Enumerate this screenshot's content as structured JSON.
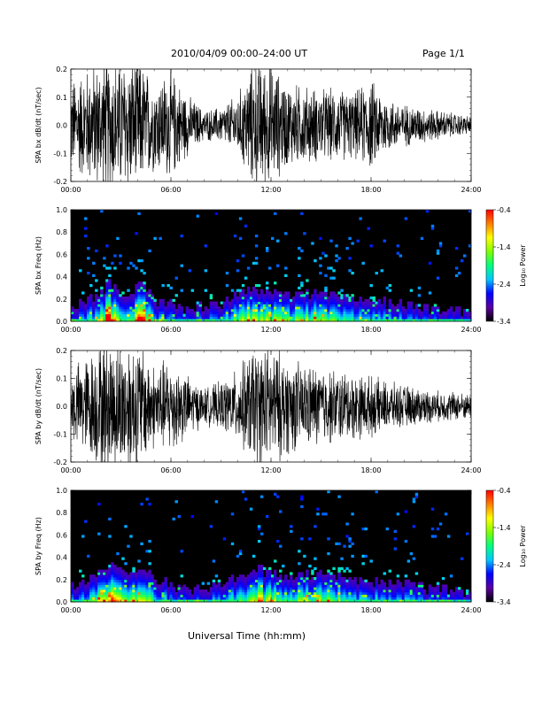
{
  "header": {
    "title": "2010/04/09   00:00–24:00 UT",
    "page": "Page 1/1"
  },
  "footer": {
    "xlabel": "Universal Time (hh:mm)"
  },
  "colorbar": {
    "label": "Log₁₀ Power",
    "ticks": [
      "-0.4",
      "-1.4",
      "-2.4",
      "-3.4"
    ],
    "range": [
      -3.4,
      -0.4
    ],
    "colors": [
      "#000000",
      "#5a00a0",
      "#0000ff",
      "#00c8ff",
      "#00ff80",
      "#80ff00",
      "#ffff00",
      "#ff8000",
      "#ff0000"
    ]
  },
  "chart_data": [
    {
      "type": "line",
      "title": "",
      "xlabel": "",
      "ylabel": "SPA bx dB/dt (nT/sec)",
      "xlim": [
        "00:00",
        "24:00"
      ],
      "ylim": [
        -0.2,
        0.2
      ],
      "xticks": [
        "00:00",
        "06:00",
        "12:00",
        "18:00",
        "24:00"
      ],
      "yticks": [
        "0.2",
        "0.1",
        "0.0",
        "-0.1",
        "-0.2"
      ],
      "envelope_hours": [
        0,
        1,
        2,
        3,
        4,
        5,
        6,
        7,
        8,
        9,
        10,
        11,
        12,
        13,
        14,
        15,
        16,
        17,
        18,
        19,
        20,
        21,
        22,
        23,
        24
      ],
      "envelope_amplitude": [
        0.15,
        0.19,
        0.22,
        0.22,
        0.22,
        0.15,
        0.18,
        0.1,
        0.05,
        0.06,
        0.1,
        0.22,
        0.2,
        0.14,
        0.13,
        0.12,
        0.12,
        0.11,
        0.15,
        0.09,
        0.07,
        0.06,
        0.05,
        0.04,
        0.03
      ]
    },
    {
      "type": "heatmap",
      "title": "",
      "xlabel": "",
      "ylabel": "SPA bx Freq (Hz)",
      "xlim": [
        "00:00",
        "24:00"
      ],
      "ylim": [
        0.0,
        1.0
      ],
      "xticks": [
        "00:00",
        "06:00",
        "12:00",
        "18:00",
        "24:00"
      ],
      "yticks": [
        "1.0",
        "0.8",
        "0.6",
        "0.4",
        "0.2",
        "0.0"
      ],
      "zlabel": "Log₁₀ Power",
      "zlim": [
        -3.4,
        -0.4
      ]
    },
    {
      "type": "line",
      "title": "",
      "xlabel": "",
      "ylabel": "SPA by dB/dt (nT/sec)",
      "xlim": [
        "00:00",
        "24:00"
      ],
      "ylim": [
        -0.2,
        0.2
      ],
      "xticks": [
        "00:00",
        "06:00",
        "12:00",
        "18:00",
        "24:00"
      ],
      "yticks": [
        "0.2",
        "0.1",
        "0.0",
        "-0.1",
        "-0.2"
      ],
      "envelope_hours": [
        0,
        1,
        2,
        3,
        4,
        5,
        6,
        7,
        8,
        9,
        10,
        11,
        12,
        13,
        14,
        15,
        16,
        17,
        18,
        19,
        20,
        21,
        22,
        23,
        24
      ],
      "envelope_amplitude": [
        0.12,
        0.17,
        0.22,
        0.22,
        0.22,
        0.14,
        0.16,
        0.1,
        0.06,
        0.08,
        0.12,
        0.2,
        0.2,
        0.16,
        0.14,
        0.13,
        0.12,
        0.11,
        0.1,
        0.08,
        0.07,
        0.06,
        0.05,
        0.05,
        0.04
      ]
    },
    {
      "type": "heatmap",
      "title": "",
      "xlabel": "",
      "ylabel": "SPA by Freq (Hz)",
      "xlim": [
        "00:00",
        "24:00"
      ],
      "ylim": [
        0.0,
        1.0
      ],
      "xticks": [
        "00:00",
        "06:00",
        "12:00",
        "18:00",
        "24:00"
      ],
      "yticks": [
        "1.0",
        "0.8",
        "0.6",
        "0.4",
        "0.2",
        "0.0"
      ],
      "zlabel": "Log₁₀ Power",
      "zlim": [
        -3.4,
        -0.4
      ]
    }
  ]
}
